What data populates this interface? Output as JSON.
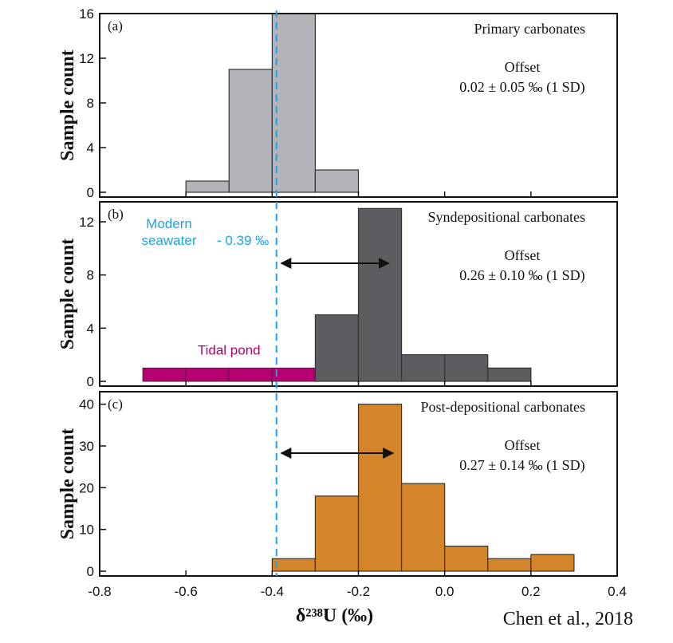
{
  "citation": "Chen et al., 2018",
  "chart_data": {
    "type": "bar",
    "xlabel": "δ²³⁸U (‰)",
    "xlim": [
      -0.8,
      0.4
    ],
    "xticks": [
      "-0.8",
      "-0.6",
      "-0.4",
      "-0.2",
      "0.0",
      "0.2",
      "0.4"
    ],
    "bin_width": 0.1,
    "seawater_line": {
      "x": -0.39,
      "label_line1": "Modern",
      "label_line2": "seawater",
      "label_value": "- 0.39 ‰",
      "color": "#1ea4e6"
    },
    "panels": [
      {
        "tag": "(a)",
        "title": "Primary carbonates",
        "ylabel": "Sample count",
        "ylim": [
          0,
          16
        ],
        "yticks": [
          0,
          4,
          8,
          12,
          16
        ],
        "color": "#b2b4b9",
        "bins": [
          {
            "start": -0.6,
            "count": 1
          },
          {
            "start": -0.5,
            "count": 11
          },
          {
            "start": -0.4,
            "count": 16
          },
          {
            "start": -0.3,
            "count": 2
          }
        ],
        "offset_label": "Offset",
        "offset_value": "0.02 ± 0.05 ‰ (1 SD)",
        "arrow": null
      },
      {
        "tag": "(b)",
        "title": "Syndepositional carbonates",
        "ylabel": "Sample count",
        "ylim": [
          0,
          13.5
        ],
        "yticks": [
          0,
          4,
          8,
          12
        ],
        "color": "#5c5d60",
        "bins": [
          {
            "start": -0.3,
            "count": 5
          },
          {
            "start": -0.2,
            "count": 13
          },
          {
            "start": -0.1,
            "count": 2
          },
          {
            "start": 0.0,
            "count": 2
          },
          {
            "start": 0.1,
            "count": 1
          }
        ],
        "extra_bins": {
          "label": "Tidal pond",
          "color": "#b5006f",
          "bins": [
            {
              "start": -0.7,
              "count": 1
            },
            {
              "start": -0.6,
              "count": 1
            },
            {
              "start": -0.5,
              "count": 1
            },
            {
              "start": -0.4,
              "count": 1
            }
          ]
        },
        "offset_label": "Offset",
        "offset_value": "0.26 ± 0.10 ‰ (1 SD)",
        "arrow": {
          "from": -0.39,
          "to": -0.13
        }
      },
      {
        "tag": "(c)",
        "title": "Post-depositional carbonates",
        "ylabel": "Sample count",
        "ylim": [
          0,
          43
        ],
        "yticks": [
          0,
          10,
          20,
          30,
          40
        ],
        "color": "#d4852a",
        "bins": [
          {
            "start": -0.4,
            "count": 3
          },
          {
            "start": -0.3,
            "count": 18
          },
          {
            "start": -0.2,
            "count": 40
          },
          {
            "start": -0.1,
            "count": 21
          },
          {
            "start": 0.0,
            "count": 6
          },
          {
            "start": 0.1,
            "count": 3
          },
          {
            "start": 0.2,
            "count": 4
          }
        ],
        "offset_label": "Offset",
        "offset_value": "0.27 ± 0.14 ‰ (1 SD)",
        "arrow": {
          "from": -0.39,
          "to": -0.12
        }
      }
    ]
  }
}
